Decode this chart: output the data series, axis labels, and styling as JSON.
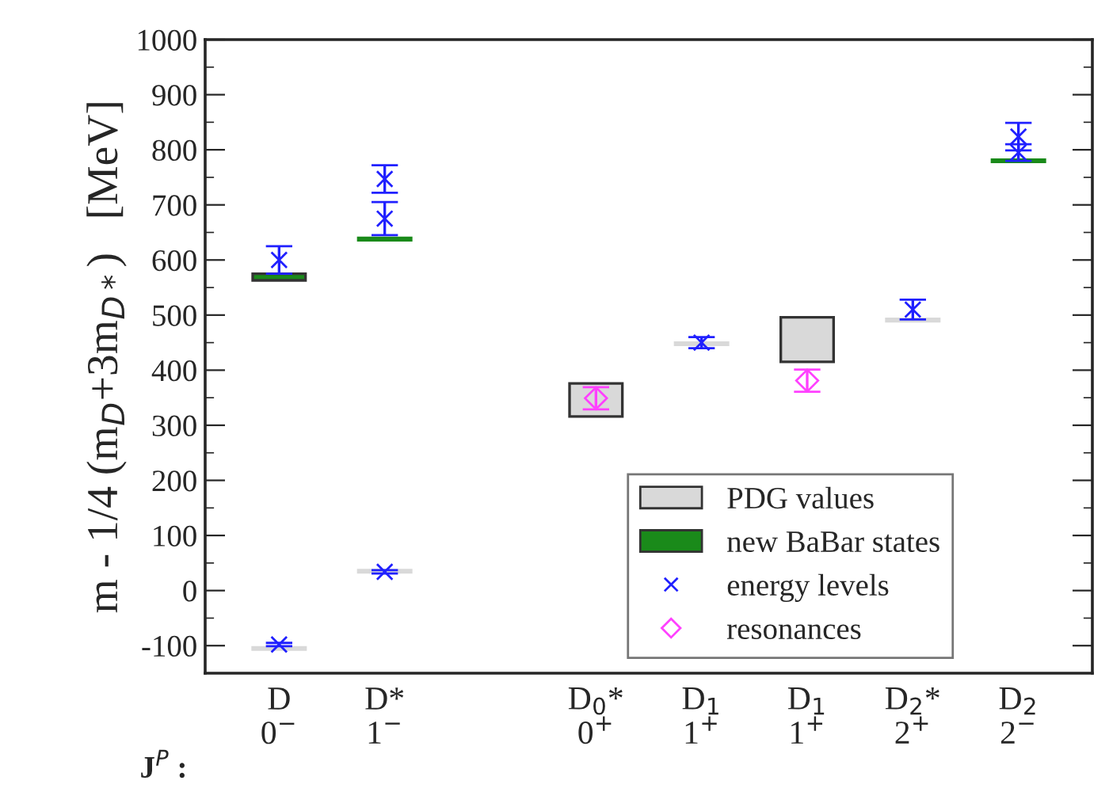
{
  "chart_data": {
    "type": "scatter",
    "ylabel": "m - 1/4 (m$_{D}$+3m$_{D*}$)   [MeV]",
    "categories": [
      "D\n0$^{−}$",
      "D*\n1$^{−}$",
      null,
      "D$_{0}$*\n0$^{+}$",
      "D$_{1}$\n1$^{+}$",
      "D$_{1}$\n1$^{+}$",
      "D$_{2}$*\n2$^{+}$",
      "D$_{2}$\n2$^{−}$"
    ],
    "ylim": [
      -150,
      1000
    ],
    "yticks": [
      -100,
      0,
      100,
      200,
      300,
      400,
      500,
      600,
      700,
      800,
      900,
      1000
    ],
    "annotations": [
      "J$^{P}$ :"
    ],
    "legend": "bottom right",
    "grid": false,
    "series": [
      {
        "name": "PDG values",
        "type": "bar",
        "color": "#d9d9d9",
        "base": [
          -107,
          33,
          null,
          316,
          446,
          415,
          489,
          null
        ],
        "values": [
          4,
          4,
          null,
          60,
          4,
          81,
          4,
          null
        ]
      },
      {
        "name": "new BaBar states",
        "type": "bar",
        "color": "#1a8a1a",
        "base": [
          563,
          636,
          null,
          null,
          null,
          null,
          null,
          778
        ],
        "values": [
          12,
          4,
          null,
          null,
          null,
          null,
          null,
          4
        ]
      },
      {
        "name": "energy levels",
        "marker": "cross",
        "color": "#2020ff",
        "values": [
          -98,
          34,
          null,
          null,
          450,
          null,
          510,
          795
        ],
        "errors": [
          3,
          3,
          null,
          null,
          10,
          null,
          18,
          15
        ]
      },
      {
        "marker": "cross",
        "color": "#2020ff",
        "values": [
          600,
          675,
          null,
          null,
          null,
          null,
          null,
          824
        ],
        "errors": [
          25,
          30,
          null,
          null,
          null,
          null,
          null,
          25
        ]
      },
      {
        "marker": "cross",
        "color": "#2020ff",
        "values": [
          null,
          747,
          null,
          null,
          null,
          null,
          null,
          null
        ],
        "errors": [
          null,
          25,
          null,
          null,
          null,
          null,
          null,
          null
        ]
      },
      {
        "name": "resonances",
        "marker": "diamond",
        "color": "#ff40ff",
        "values": [
          null,
          null,
          null,
          349,
          null,
          381,
          null,
          null
        ],
        "errors": [
          null,
          null,
          null,
          20,
          null,
          20,
          null,
          null
        ]
      }
    ]
  }
}
